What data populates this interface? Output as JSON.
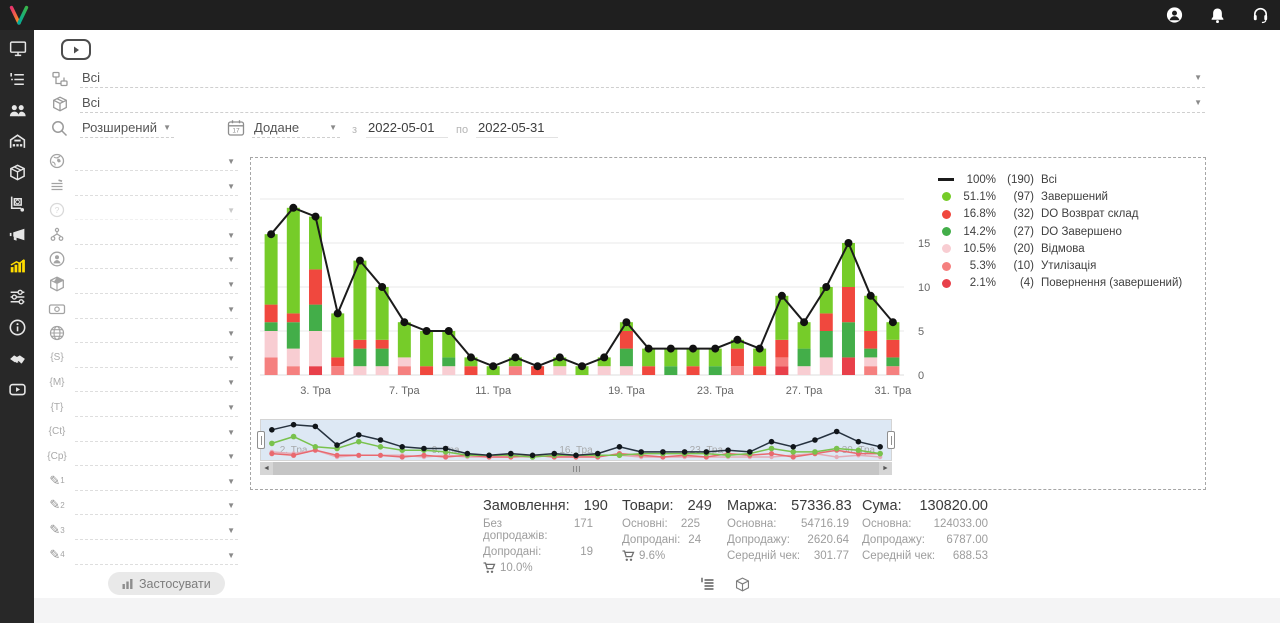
{
  "topbar": {
    "icons": [
      "user-icon",
      "bell-icon",
      "headset-icon"
    ],
    "logo": "brand-logo"
  },
  "sidebar": {
    "items": [
      {
        "name": "dashboard"
      },
      {
        "name": "orders"
      },
      {
        "name": "clients"
      },
      {
        "name": "warehouse"
      },
      {
        "name": "products"
      },
      {
        "name": "procurement"
      },
      {
        "name": "marketing"
      },
      {
        "name": "statistics",
        "active": true,
        "active_color": "#ffdd00"
      },
      {
        "name": "automation"
      },
      {
        "name": "info"
      },
      {
        "name": "partners"
      },
      {
        "name": "video"
      }
    ]
  },
  "filters_top": {
    "status_tree_value": "Всі",
    "product_value": "Всі",
    "search_mode_value": "Розширений",
    "date_field_value": "Додане",
    "from_label": "з",
    "date_from": "2022-05-01",
    "to_label": "по",
    "date_to": "2022-05-31"
  },
  "filter_panel": {
    "rows": [
      {
        "icon": "globe-flag-icon",
        "value": ""
      },
      {
        "icon": "status-lines-icon",
        "value": ""
      },
      {
        "icon": "help-circle-icon",
        "value": "",
        "disabled": true
      },
      {
        "icon": "sitemap-icon",
        "value": ""
      },
      {
        "icon": "person-circle-icon",
        "value": ""
      },
      {
        "icon": "package-icon",
        "value": ""
      },
      {
        "icon": "money-icon",
        "value": ""
      },
      {
        "icon": "web-globe-icon",
        "value": ""
      },
      {
        "icon": "tag-icon",
        "tag": "{S}",
        "value": ""
      },
      {
        "icon": "tag-icon",
        "tag": "{M}",
        "value": ""
      },
      {
        "icon": "tag-icon",
        "tag": "{T}",
        "value": ""
      },
      {
        "icon": "tag-icon",
        "tag": "{Ct}",
        "value": ""
      },
      {
        "icon": "tag-icon",
        "tag": "{Cp}",
        "value": ""
      },
      {
        "icon": "pencil-icon",
        "num": "1",
        "value": ""
      },
      {
        "icon": "pencil-icon",
        "num": "2",
        "value": ""
      },
      {
        "icon": "pencil-icon",
        "num": "3",
        "value": ""
      },
      {
        "icon": "pencil-icon",
        "num": "4",
        "value": ""
      }
    ],
    "apply_label": "Застосувати"
  },
  "legend": {
    "items": [
      {
        "marker": "line",
        "color": "#1b1b1b",
        "pct": "100%",
        "count": "(190)",
        "label": "Всі"
      },
      {
        "marker": "dot",
        "color": "#76cc29",
        "pct": "51.1%",
        "count": "(97)",
        "label": "Завершений"
      },
      {
        "marker": "dot",
        "color": "#f0483e",
        "pct": "16.8%",
        "count": "(32)",
        "label": "DO Возврат склад"
      },
      {
        "marker": "dot",
        "color": "#43ae49",
        "pct": "14.2%",
        "count": "(27)",
        "label": "DO Завершено"
      },
      {
        "marker": "dot",
        "color": "#f8cdd2",
        "pct": "10.5%",
        "count": "(20)",
        "label": "Відмова"
      },
      {
        "marker": "dot",
        "color": "#f5807f",
        "pct": "5.3%",
        "count": "(10)",
        "label": "Утилізація"
      },
      {
        "marker": "dot",
        "color": "#e8404a",
        "pct": "2.1%",
        "count": "(4)",
        "label": "Повернення (завершений)"
      }
    ]
  },
  "chart_data": {
    "type": "bar",
    "subtype": "stacked-columns-with-total-line",
    "x": [
      "1. Тра",
      "2. Тра",
      "3. Тра",
      "4. Тра",
      "5. Тра",
      "6. Тра",
      "7. Тра",
      "8. Тра",
      "9. Тра",
      "10. Тра",
      "11. Тра",
      "12. Тра",
      "14. Тра",
      "15. Тра",
      "16. Тра",
      "18. Тра",
      "19. Тра",
      "20. Тра",
      "21. Тра",
      "22. Тра",
      "23. Тра",
      "24. Тра",
      "25. Тра",
      "26. Тра",
      "27. Тра",
      "28. Тра",
      "29. Тра",
      "30. Тра",
      "31. Тра"
    ],
    "xtick_indices": [
      2,
      6,
      10,
      16,
      20,
      24,
      28
    ],
    "yticks": [
      0,
      5,
      10,
      15
    ],
    "grid_values": [
      0,
      5,
      10,
      15,
      20
    ],
    "ylim": [
      0,
      20
    ],
    "series": [
      {
        "name": "Повернення (завершений)",
        "color": "#e8404a",
        "values": [
          0,
          0,
          1,
          0,
          0,
          0,
          0,
          0,
          0,
          0,
          0,
          0,
          0,
          0,
          0,
          0,
          0,
          0,
          0,
          0,
          0,
          0,
          0,
          1,
          0,
          0,
          2,
          0,
          0
        ]
      },
      {
        "name": "Утилізація",
        "color": "#f5807f",
        "values": [
          2,
          1,
          0,
          1,
          0,
          0,
          1,
          0,
          0,
          0,
          0,
          1,
          0,
          0,
          0,
          0,
          0,
          0,
          0,
          0,
          0,
          1,
          0,
          1,
          0,
          0,
          0,
          1,
          1
        ]
      },
      {
        "name": "Відмова",
        "color": "#f8cdd2",
        "values": [
          3,
          2,
          4,
          0,
          1,
          1,
          1,
          0,
          1,
          0,
          0,
          0,
          0,
          1,
          0,
          1,
          1,
          0,
          0,
          0,
          0,
          0,
          0,
          0,
          1,
          2,
          0,
          1,
          0
        ]
      },
      {
        "name": "DO Завершено",
        "color": "#43ae49",
        "values": [
          1,
          3,
          3,
          0,
          2,
          2,
          0,
          0,
          1,
          0,
          0,
          0,
          0,
          0,
          0,
          0,
          2,
          0,
          1,
          0,
          1,
          0,
          0,
          0,
          2,
          3,
          4,
          1,
          1
        ]
      },
      {
        "name": "DO Возврат склад",
        "color": "#f0483e",
        "values": [
          2,
          1,
          4,
          1,
          1,
          1,
          0,
          1,
          0,
          1,
          0,
          0,
          1,
          0,
          0,
          0,
          2,
          1,
          0,
          1,
          0,
          2,
          1,
          2,
          0,
          2,
          4,
          2,
          2
        ]
      },
      {
        "name": "Завершений",
        "color": "#76cc29",
        "values": [
          8,
          12,
          6,
          5,
          9,
          6,
          4,
          4,
          3,
          1,
          1,
          1,
          0,
          1,
          1,
          1,
          1,
          2,
          2,
          2,
          2,
          1,
          2,
          5,
          3,
          3,
          5,
          4,
          2
        ]
      }
    ],
    "line": {
      "name": "Всі",
      "color": "#1b1b1b",
      "values": [
        16,
        19,
        18,
        7,
        13,
        10,
        6,
        5,
        5,
        2,
        1,
        2,
        1,
        2,
        1,
        2,
        6,
        3,
        3,
        3,
        3,
        4,
        3,
        9,
        6,
        10,
        15,
        9,
        6
      ]
    },
    "navigator_tick_labels": [
      "2. Тра",
      "9. Тра",
      "16. Тра",
      "23. Тра",
      "30. Тра"
    ],
    "navigator_tick_indices": [
      1,
      8,
      14,
      20,
      27
    ]
  },
  "stats": {
    "columns": [
      {
        "title": "Замовлення:",
        "value": "190",
        "rows": [
          {
            "label": "Без допродажів:",
            "value": "171"
          },
          {
            "label": "Допродані:",
            "value": "19"
          }
        ],
        "cart_value": "10.0%"
      },
      {
        "title": "Товари:",
        "value": "249",
        "rows": [
          {
            "label": "Основні:",
            "value": "225"
          },
          {
            "label": "Допродані:",
            "value": "24"
          }
        ],
        "cart_value": "9.6%"
      },
      {
        "title": "Маржа:",
        "value": "57336.83",
        "rows": [
          {
            "label": "Основна:",
            "value": "54716.19"
          },
          {
            "label": "Допродажу:",
            "value": "2620.64"
          },
          {
            "label": "Середній чек:",
            "value": "301.77"
          }
        ]
      },
      {
        "title": "Сума:",
        "value": "130820.00",
        "rows": [
          {
            "label": "Основна:",
            "value": "124033.00"
          },
          {
            "label": "Допродажу:",
            "value": "6787.00"
          },
          {
            "label": "Середній чек:",
            "value": "688.53"
          }
        ]
      }
    ]
  },
  "footer_toggles": [
    "list-view-icon",
    "product-view-icon"
  ]
}
